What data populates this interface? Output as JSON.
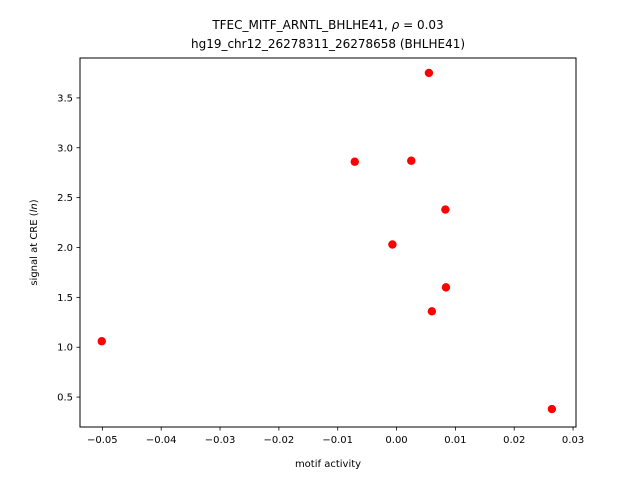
{
  "chart_data": {
    "type": "scatter",
    "title": "TFEC_MITF_ARNTL_BHLHE41, ρ = 0.03",
    "title_main": "TFEC_MITF_ARNTL_BHLHE41, ",
    "title_rho": "ρ",
    "title_rho_value": " = 0.03",
    "subtitle": "hg19_chr12_26278311_26278658 (BHLHE41)",
    "xlabel": "motif activity",
    "ylabel_prefix": "signal at CRE (",
    "ylabel_italic": "ln",
    "ylabel_suffix": ")",
    "xlim": [
      -0.0538,
      0.0305
    ],
    "ylim": [
      0.2,
      3.9
    ],
    "x_ticks": [
      -0.05,
      -0.04,
      -0.03,
      -0.02,
      -0.01,
      0.0,
      0.01,
      0.02,
      0.03
    ],
    "x_tick_labels": [
      "−0.05",
      "−0.04",
      "−0.03",
      "−0.02",
      "−0.01",
      "0.00",
      "0.01",
      "0.02",
      "0.03"
    ],
    "y_ticks": [
      0.5,
      1.0,
      1.5,
      2.0,
      2.5,
      3.0,
      3.5
    ],
    "y_tick_labels": [
      "0.5",
      "1.0",
      "1.5",
      "2.0",
      "2.5",
      "3.0",
      "3.5"
    ],
    "point_color": "#ff0000",
    "grid": false,
    "points": [
      {
        "x": -0.0501,
        "y": 1.06
      },
      {
        "x": -0.0071,
        "y": 2.86
      },
      {
        "x": -0.0007,
        "y": 2.03
      },
      {
        "x": 0.0025,
        "y": 2.87
      },
      {
        "x": 0.0055,
        "y": 3.75
      },
      {
        "x": 0.006,
        "y": 1.36
      },
      {
        "x": 0.0083,
        "y": 2.38
      },
      {
        "x": 0.0084,
        "y": 1.6
      },
      {
        "x": 0.0264,
        "y": 0.38
      }
    ]
  }
}
